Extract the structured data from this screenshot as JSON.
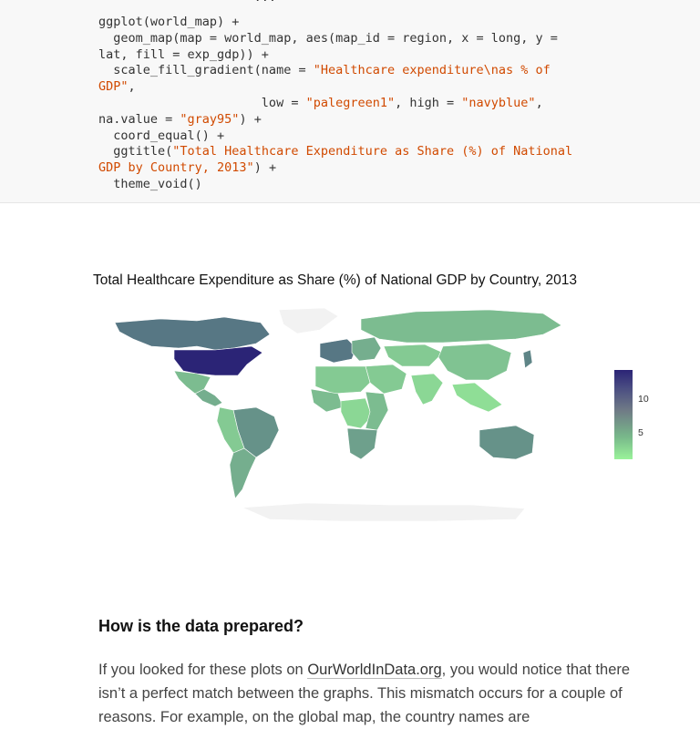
{
  "code": {
    "partial_top": "                     ...",
    "lines": [
      [
        {
          "t": "ggplot(world_map) +",
          "s": false
        }
      ],
      [
        {
          "t": "  geom_map(map = world_map, aes(map_id = region, x = long, y =",
          "s": false
        }
      ],
      [
        {
          "t": "lat, fill = exp_gdp)) +",
          "s": false
        }
      ],
      [
        {
          "t": "  scale_fill_gradient(name = ",
          "s": false
        },
        {
          "t": "\"Healthcare expenditure\\nas % of",
          "s": true
        }
      ],
      [
        {
          "t": "GDP\"",
          "s": true
        },
        {
          "t": ",",
          "s": false
        }
      ],
      [
        {
          "t": "                      low = ",
          "s": false
        },
        {
          "t": "\"palegreen1\"",
          "s": true
        },
        {
          "t": ", high = ",
          "s": false
        },
        {
          "t": "\"navyblue\"",
          "s": true
        },
        {
          "t": ",",
          "s": false
        }
      ],
      [
        {
          "t": "na.value = ",
          "s": false
        },
        {
          "t": "\"gray95\"",
          "s": true
        },
        {
          "t": ") +",
          "s": false
        }
      ],
      [
        {
          "t": "  coord_equal() +",
          "s": false
        }
      ],
      [
        {
          "t": "  ggtitle(",
          "s": false
        },
        {
          "t": "\"Total Healthcare Expenditure as Share (%) of National",
          "s": true
        }
      ],
      [
        {
          "t": "GDP by Country, 2013\"",
          "s": true
        },
        {
          "t": ") +",
          "s": false
        }
      ],
      [
        {
          "t": "  theme_void()",
          "s": false
        }
      ]
    ]
  },
  "chart_data": {
    "type": "heatmap",
    "title": "Total Healthcare Expenditure as Share (%) of National GDP by Country, 2013",
    "legend": {
      "ticks": [
        10,
        5
      ],
      "low_color": "#9af39a",
      "high_color": "#2b2476",
      "placement": "right"
    },
    "regions": [
      {
        "name": "north-america-canada",
        "value": 11
      },
      {
        "name": "united-states",
        "value": 17
      },
      {
        "name": "mexico",
        "value": 6
      },
      {
        "name": "central-america",
        "value": 7
      },
      {
        "name": "south-america-brazil",
        "value": 9
      },
      {
        "name": "south-america-west",
        "value": 5
      },
      {
        "name": "argentina-chile",
        "value": 7
      },
      {
        "name": "greenland",
        "value": null
      },
      {
        "name": "western-europe",
        "value": 11
      },
      {
        "name": "eastern-europe",
        "value": 7
      },
      {
        "name": "russia",
        "value": 6
      },
      {
        "name": "central-asia",
        "value": 5
      },
      {
        "name": "china",
        "value": 5.5
      },
      {
        "name": "india",
        "value": 4
      },
      {
        "name": "middle-east",
        "value": 5
      },
      {
        "name": "north-africa",
        "value": 5
      },
      {
        "name": "west-africa",
        "value": 6
      },
      {
        "name": "central-africa",
        "value": 4
      },
      {
        "name": "east-africa",
        "value": 6
      },
      {
        "name": "southern-africa",
        "value": 8
      },
      {
        "name": "southeast-asia",
        "value": 3.5
      },
      {
        "name": "japan",
        "value": 10
      },
      {
        "name": "australia",
        "value": 9
      },
      {
        "name": "antarctica",
        "value": null
      }
    ],
    "na_color": "#f2f2f2"
  },
  "article": {
    "heading": "How is the data prepared?",
    "para_before_link": "If you looked for these plots on ",
    "link_text": "OurWorldInData.org",
    "para_after_link": ", you would notice that there isn’t a perfect match between the graphs. This mismatch occurs for a couple of reasons. For example, on the global map, the country names are"
  }
}
